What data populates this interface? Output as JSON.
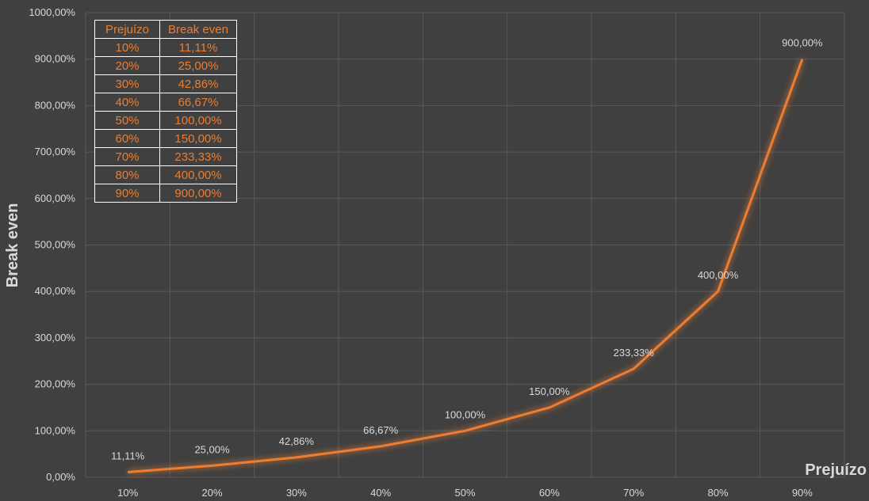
{
  "chart_data": {
    "type": "line",
    "xlabel": "Prejuízo",
    "ylabel": "Break even",
    "categories": [
      "10%",
      "20%",
      "30%",
      "40%",
      "50%",
      "60%",
      "70%",
      "80%",
      "90%"
    ],
    "series": [
      {
        "values": [
          11.11,
          25.0,
          42.86,
          66.67,
          100.0,
          150.0,
          233.33,
          400.0,
          900.0
        ],
        "labels": [
          "11,11%",
          "25,00%",
          "42,86%",
          "66,67%",
          "100,00%",
          "150,00%",
          "233,33%",
          "400,00%",
          "900,00%"
        ]
      }
    ],
    "ylim": [
      0,
      1000
    ],
    "yticks": [
      0,
      100,
      200,
      300,
      400,
      500,
      600,
      700,
      800,
      900,
      1000
    ],
    "ytick_labels": [
      "0,00%",
      "100,00%",
      "200,00%",
      "300,00%",
      "400,00%",
      "500,00%",
      "600,00%",
      "700,00%",
      "800,00%",
      "900,00%",
      "1000,00%"
    ],
    "grid": true,
    "legend": "none",
    "line_color": "#ed7d31"
  },
  "table": {
    "headers": [
      "Prejuízo",
      "Break even"
    ],
    "rows": [
      [
        "10%",
        "11,11%"
      ],
      [
        "20%",
        "25,00%"
      ],
      [
        "30%",
        "42,86%"
      ],
      [
        "40%",
        "66,67%"
      ],
      [
        "50%",
        "100,00%"
      ],
      [
        "60%",
        "150,00%"
      ],
      [
        "70%",
        "233,33%"
      ],
      [
        "80%",
        "400,00%"
      ],
      [
        "90%",
        "900,00%"
      ]
    ]
  }
}
